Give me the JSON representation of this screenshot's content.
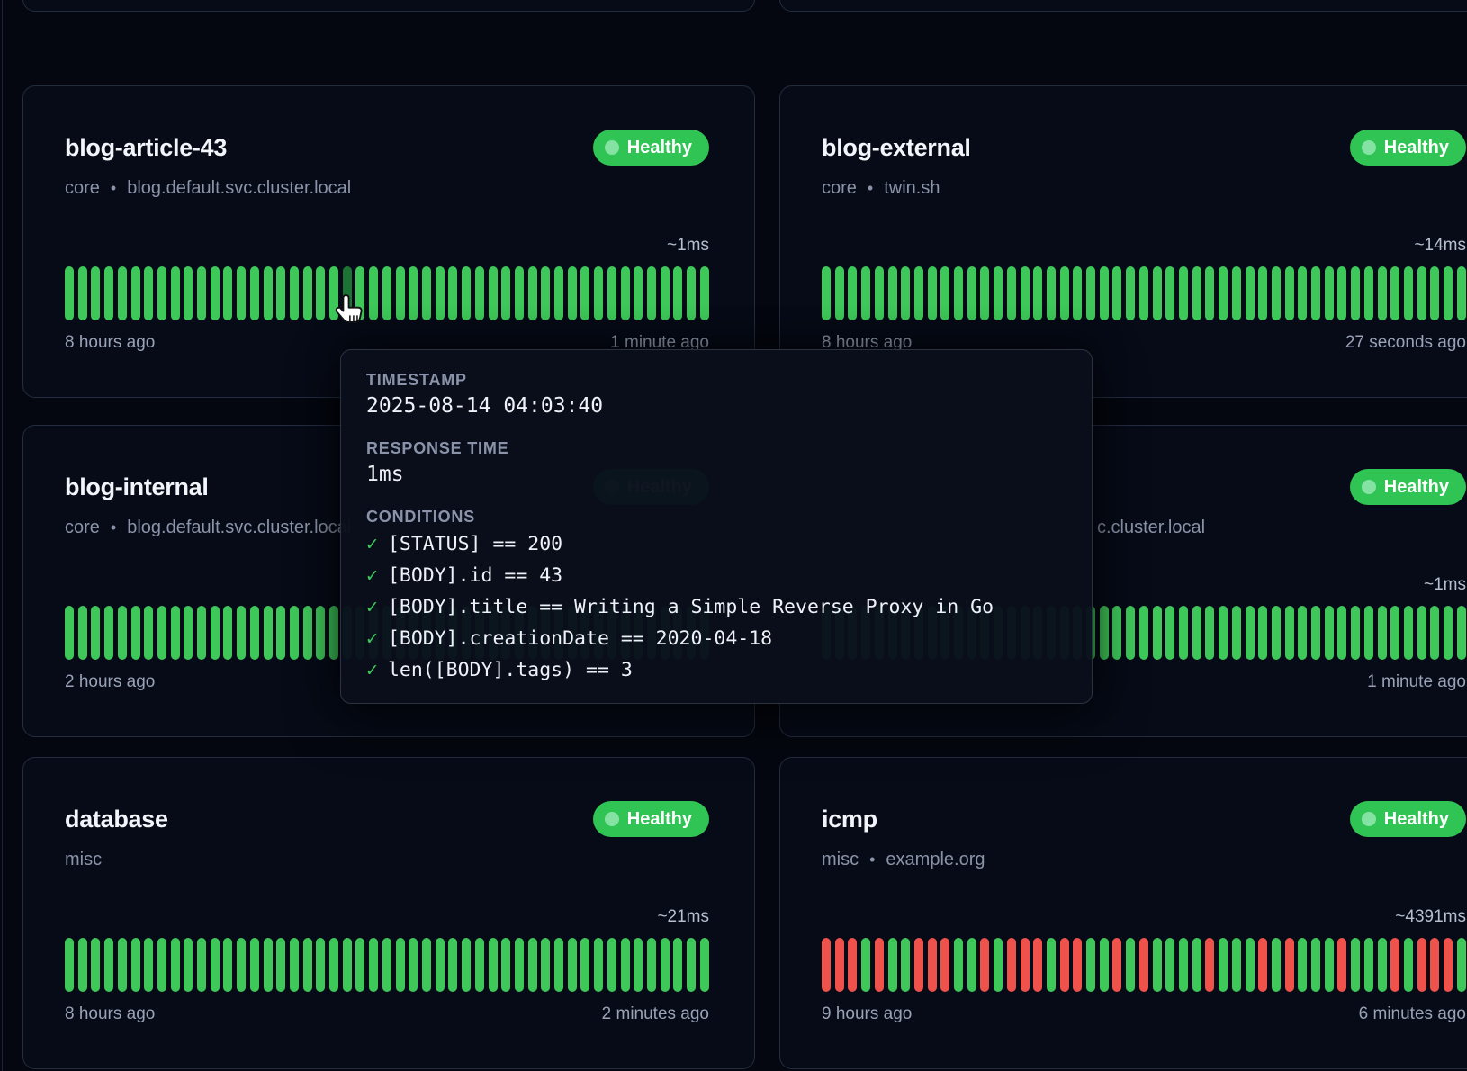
{
  "ui": {
    "separator": "•",
    "check_glyph": "✓",
    "colors": {
      "page_bg": "#04070f",
      "card_bg": "#060b17",
      "card_border": "#242c40",
      "bar_ok": "#3ec85a",
      "bar_fail": "#ee524b",
      "bar_hovered": "#1c7434",
      "badge_bg": "#2fc454",
      "badge_dot": "#84e3a2"
    }
  },
  "cards": [
    {
      "name": "blog-article-43",
      "group": "core",
      "host": "blog.default.svc.cluster.local",
      "badge": "Healthy",
      "response_time": "~1ms",
      "left_time": "8 hours ago",
      "right_time": "1 minute ago",
      "column": "left",
      "row": 1,
      "history": "ooooooooooooooooooooohooooooooooooooooooooooooooo"
    },
    {
      "name": "blog-external",
      "group": "core",
      "host": "twin.sh",
      "badge": "Healthy",
      "response_time": "~14ms",
      "left_time": "8 hours ago",
      "right_time": "27 seconds ago",
      "column": "right",
      "row": 1,
      "history": "ooooooooooooooooooooooooooooooooooooooooooooooooo"
    },
    {
      "name": "blog-internal",
      "group": "core",
      "host": "blog.default.svc.cluster.local",
      "badge": "Healthy",
      "response_time": "",
      "left_time": "2 hours ago",
      "right_time": "",
      "column": "left",
      "row": 2,
      "history": "ooooooooooooooooooooooooooooooooooooooooooooooooo"
    },
    {
      "name": "",
      "group": "",
      "host": "c.cluster.local",
      "badge": "Healthy",
      "response_time": "~1ms",
      "left_time": "",
      "right_time": "1 minute ago",
      "column": "right",
      "row": 2,
      "offset_sub": true,
      "history": "ooooooooooooooooooooooooooooooooooooooooooooooooo"
    },
    {
      "name": "database",
      "group": "misc",
      "host": "",
      "badge": "Healthy",
      "response_time": "~21ms",
      "left_time": "8 hours ago",
      "right_time": "2 minutes ago",
      "column": "left",
      "row": 3,
      "history": "ooooooooooooooooooooooooooooooooooooooooooooooooo"
    },
    {
      "name": "icmp",
      "group": "misc",
      "host": "example.org",
      "badge": "Healthy",
      "response_time": "~4391ms",
      "left_time": "9 hours ago",
      "right_time": "6 minutes ago",
      "column": "right",
      "row": 3,
      "history": "fffgfggfffggfgfffgffggfgfggggfgggfgfgggfgggfgfffg"
    }
  ],
  "tooltip": {
    "timestamp_label": "TIMESTAMP",
    "timestamp_value": "2025-08-14 04:03:40",
    "response_label": "RESPONSE TIME",
    "response_value": "1ms",
    "conditions_label": "CONDITIONS",
    "conditions": [
      "[STATUS] == 200",
      "[BODY].id == 43",
      "[BODY].title == Writing a Simple Reverse Proxy in Go",
      "[BODY].creationDate == 2020-04-18",
      "len([BODY].tags) == 3"
    ]
  }
}
